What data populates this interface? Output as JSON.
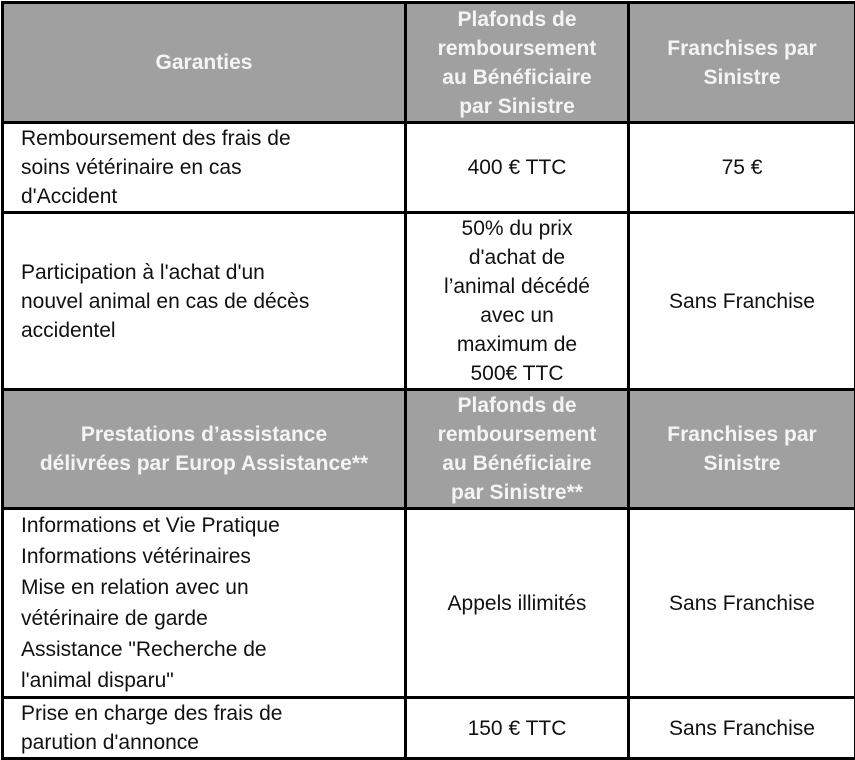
{
  "header1": {
    "col1": "Garanties",
    "col2": [
      "Plafonds de",
      "remboursement",
      "au Bénéficiaire",
      "par Sinistre"
    ],
    "col3": [
      "Franchises par",
      "Sinistre"
    ]
  },
  "rows1": [
    {
      "garantie": [
        "Remboursement des frais de",
        "soins vétérinaire en cas",
        "d'Accident"
      ],
      "plafond": [
        "400 € TTC"
      ],
      "franchise": "75 €"
    },
    {
      "garantie": [
        "Participation à l'achat d'un",
        "nouvel animal en cas de décès",
        "accidentel"
      ],
      "plafond": [
        "50% du prix",
        "d'achat de",
        "l’animal décédé",
        "avec un",
        "maximum de",
        "500€ TTC"
      ],
      "franchise": "Sans Franchise"
    }
  ],
  "header2": {
    "col1": [
      "Prestations d’assistance",
      "délivrées par Europ Assistance**"
    ],
    "col2": [
      "Plafonds de",
      "remboursement",
      "au Bénéficiaire",
      "par Sinistre**"
    ],
    "col3": [
      "Franchises par",
      "Sinistre"
    ]
  },
  "rows2": [
    {
      "prestation": [
        "Informations et Vie Pratique",
        "Informations vétérinaires",
        "Mise en relation avec un",
        "vétérinaire de garde",
        "Assistance \"Recherche de",
        "l'animal disparu\""
      ],
      "plafond": "Appels illimités",
      "franchise": "Sans Franchise"
    },
    {
      "prestation": [
        "Prise en charge des frais de",
        "parution d'annonce"
      ],
      "plafond": "150 € TTC",
      "franchise": "Sans Franchise"
    }
  ],
  "colors": {
    "header_bg": "#a0a0a0",
    "header_text": "#f4f4f4",
    "border": "#000000"
  }
}
